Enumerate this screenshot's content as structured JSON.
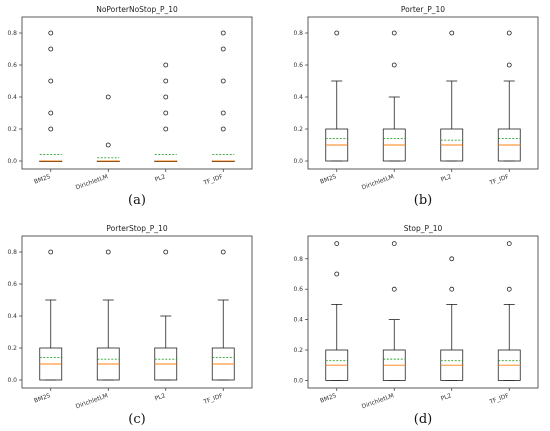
{
  "colors": {
    "box": "#222222",
    "median": "#ff7f0e",
    "mean": "#2ca02c",
    "flier": "#222222"
  },
  "chart_data": [
    {
      "type": "box",
      "title": "NoPorterNoStop_P_10",
      "caption": "(a)",
      "categories": [
        "BM25",
        "DirichletLM",
        "PL2",
        "TF_IDF"
      ],
      "ylim": [
        -0.05,
        0.9
      ],
      "yticks": [
        "0.0",
        "0.2",
        "0.4",
        "0.6",
        "0.8"
      ],
      "boxes": [
        {
          "q1": 0.0,
          "q3": 0.0,
          "median": 0.0,
          "mean": 0.04,
          "whislo": 0.0,
          "whishi": 0.0,
          "fliers": [
            0.2,
            0.3,
            0.5,
            0.7,
            0.8
          ]
        },
        {
          "q1": 0.0,
          "q3": 0.0,
          "median": 0.0,
          "mean": 0.02,
          "whislo": 0.0,
          "whishi": 0.0,
          "fliers": [
            0.1,
            0.4
          ]
        },
        {
          "q1": 0.0,
          "q3": 0.0,
          "median": 0.0,
          "mean": 0.04,
          "whislo": 0.0,
          "whishi": 0.0,
          "fliers": [
            0.2,
            0.3,
            0.4,
            0.5,
            0.6
          ]
        },
        {
          "q1": 0.0,
          "q3": 0.0,
          "median": 0.0,
          "mean": 0.04,
          "whislo": 0.0,
          "whishi": 0.0,
          "fliers": [
            0.2,
            0.3,
            0.5,
            0.7,
            0.8
          ]
        }
      ]
    },
    {
      "type": "box",
      "title": "Porter_P_10",
      "caption": "(b)",
      "categories": [
        "BM25",
        "DirichletLM",
        "PL2",
        "TF_IDF"
      ],
      "ylim": [
        -0.05,
        0.9
      ],
      "yticks": [
        "0.0",
        "0.2",
        "0.4",
        "0.6",
        "0.8"
      ],
      "boxes": [
        {
          "q1": 0.0,
          "q3": 0.2,
          "median": 0.1,
          "mean": 0.14,
          "whislo": 0.0,
          "whishi": 0.5,
          "fliers": [
            0.8
          ]
        },
        {
          "q1": 0.0,
          "q3": 0.2,
          "median": 0.1,
          "mean": 0.14,
          "whislo": 0.0,
          "whishi": 0.4,
          "fliers": [
            0.6,
            0.8
          ]
        },
        {
          "q1": 0.0,
          "q3": 0.2,
          "median": 0.1,
          "mean": 0.13,
          "whislo": 0.0,
          "whishi": 0.5,
          "fliers": [
            0.8
          ]
        },
        {
          "q1": 0.0,
          "q3": 0.2,
          "median": 0.1,
          "mean": 0.14,
          "whislo": 0.0,
          "whishi": 0.5,
          "fliers": [
            0.6,
            0.8
          ]
        }
      ]
    },
    {
      "type": "box",
      "title": "PorterStop_P_10",
      "caption": "(c)",
      "categories": [
        "BM25",
        "DirichletLM",
        "PL2",
        "TF_IDF"
      ],
      "ylim": [
        -0.05,
        0.9
      ],
      "yticks": [
        "0.0",
        "0.2",
        "0.4",
        "0.6",
        "0.8"
      ],
      "boxes": [
        {
          "q1": 0.0,
          "q3": 0.2,
          "median": 0.1,
          "mean": 0.14,
          "whislo": 0.0,
          "whishi": 0.5,
          "fliers": [
            0.8
          ]
        },
        {
          "q1": 0.0,
          "q3": 0.2,
          "median": 0.1,
          "mean": 0.13,
          "whislo": 0.0,
          "whishi": 0.5,
          "fliers": [
            0.8
          ]
        },
        {
          "q1": 0.0,
          "q3": 0.2,
          "median": 0.1,
          "mean": 0.13,
          "whislo": 0.0,
          "whishi": 0.4,
          "fliers": [
            0.8
          ]
        },
        {
          "q1": 0.0,
          "q3": 0.2,
          "median": 0.1,
          "mean": 0.14,
          "whislo": 0.0,
          "whishi": 0.5,
          "fliers": [
            0.8
          ]
        }
      ]
    },
    {
      "type": "box",
      "title": "Stop_P_10",
      "caption": "(d)",
      "categories": [
        "BM25",
        "DirichletLM",
        "PL2",
        "TF_IDF"
      ],
      "ylim": [
        -0.05,
        0.95
      ],
      "yticks": [
        "0.0",
        "0.2",
        "0.4",
        "0.6",
        "0.8"
      ],
      "boxes": [
        {
          "q1": 0.0,
          "q3": 0.2,
          "median": 0.1,
          "mean": 0.13,
          "whislo": 0.0,
          "whishi": 0.5,
          "fliers": [
            0.7,
            0.9
          ]
        },
        {
          "q1": 0.0,
          "q3": 0.2,
          "median": 0.1,
          "mean": 0.14,
          "whislo": 0.0,
          "whishi": 0.4,
          "fliers": [
            0.6,
            0.9
          ]
        },
        {
          "q1": 0.0,
          "q3": 0.2,
          "median": 0.1,
          "mean": 0.13,
          "whislo": 0.0,
          "whishi": 0.5,
          "fliers": [
            0.6,
            0.8
          ]
        },
        {
          "q1": 0.0,
          "q3": 0.2,
          "median": 0.1,
          "mean": 0.13,
          "whislo": 0.0,
          "whishi": 0.5,
          "fliers": [
            0.6,
            0.9
          ]
        }
      ]
    }
  ]
}
